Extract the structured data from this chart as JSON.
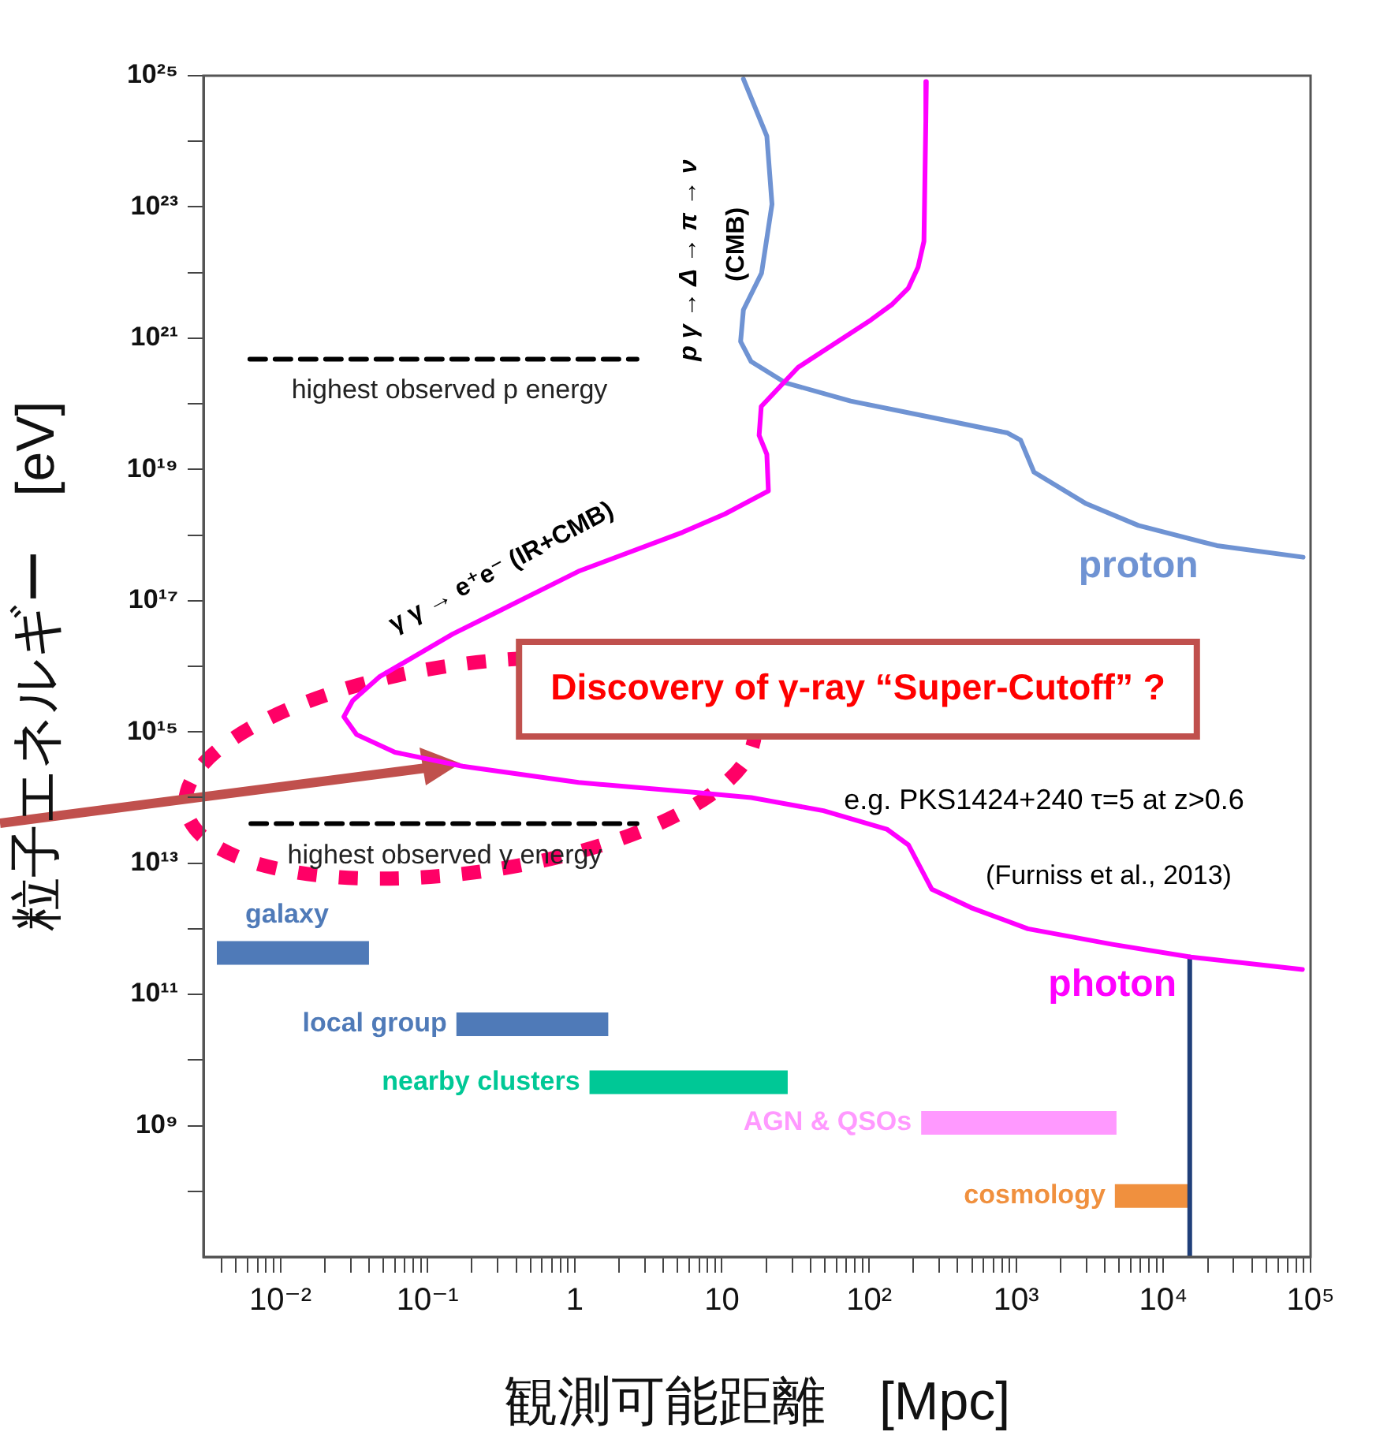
{
  "chart_data": {
    "type": "line",
    "xlabel": "観測可能距離　[Mpc]",
    "ylabel": "粒子エネルギー　[eV]",
    "log": "xy",
    "grid": false,
    "legend": false,
    "marker": "none",
    "line_style": "solid",
    "xlim": [
      0.003,
      100000
    ],
    "ylim": [
      10000000.0,
      1e+25
    ],
    "xticks": [
      {
        "value": 0.004,
        "label": null
      },
      {
        "value": 0.005,
        "label": null
      },
      {
        "value": 0.006,
        "label": null
      },
      {
        "value": 0.007,
        "label": null
      },
      {
        "value": 0.008,
        "label": null
      },
      {
        "value": 0.009,
        "label": null
      },
      {
        "value": 0.01,
        "label": "10⁻²"
      },
      {
        "value": 0.02,
        "label": null
      },
      {
        "value": 0.03,
        "label": null
      },
      {
        "value": 0.04,
        "label": null
      },
      {
        "value": 0.05,
        "label": null
      },
      {
        "value": 0.06,
        "label": null
      },
      {
        "value": 0.07,
        "label": null
      },
      {
        "value": 0.08,
        "label": null
      },
      {
        "value": 0.09,
        "label": null
      },
      {
        "value": 0.1,
        "label": "10⁻¹"
      },
      {
        "value": 0.2,
        "label": null
      },
      {
        "value": 0.3,
        "label": null
      },
      {
        "value": 0.4,
        "label": null
      },
      {
        "value": 0.5,
        "label": null
      },
      {
        "value": 0.6,
        "label": null
      },
      {
        "value": 0.7,
        "label": null
      },
      {
        "value": 0.8,
        "label": null
      },
      {
        "value": 0.9,
        "label": null
      },
      1,
      {
        "value": 2,
        "label": null
      },
      {
        "value": 3,
        "label": null
      },
      {
        "value": 4,
        "label": null
      },
      {
        "value": 5,
        "label": null
      },
      {
        "value": 6,
        "label": null
      },
      {
        "value": 7,
        "label": null
      },
      {
        "value": 8,
        "label": null
      },
      {
        "value": 9,
        "label": null
      },
      10,
      {
        "value": 20,
        "label": null
      },
      {
        "value": 30,
        "label": null
      },
      {
        "value": 40,
        "label": null
      },
      {
        "value": 50,
        "label": null
      },
      {
        "value": 60,
        "label": null
      },
      {
        "value": 70,
        "label": null
      },
      {
        "value": 80,
        "label": null
      },
      {
        "value": 90,
        "label": null
      },
      {
        "value": 100,
        "label": "10²"
      },
      {
        "value": 200,
        "label": null
      },
      {
        "value": 300,
        "label": null
      },
      {
        "value": 400,
        "label": null
      },
      {
        "value": 500,
        "label": null
      },
      {
        "value": 600,
        "label": null
      },
      {
        "value": 700,
        "label": null
      },
      {
        "value": 800,
        "label": null
      },
      {
        "value": 900,
        "label": null
      },
      {
        "value": 1000,
        "label": "10³"
      },
      {
        "value": 2000,
        "label": null
      },
      {
        "value": 3000,
        "label": null
      },
      {
        "value": 4000,
        "label": null
      },
      {
        "value": 5000,
        "label": null
      },
      {
        "value": 6000,
        "label": null
      },
      {
        "value": 7000,
        "label": null
      },
      {
        "value": 8000,
        "label": null
      },
      {
        "value": 9000,
        "label": null
      },
      {
        "value": 10000,
        "label": "10⁴"
      },
      {
        "value": 20000,
        "label": null
      },
      {
        "value": 30000,
        "label": null
      },
      {
        "value": 40000,
        "label": null
      },
      {
        "value": 50000,
        "label": null
      },
      {
        "value": 60000,
        "label": null
      },
      {
        "value": 70000,
        "label": null
      },
      {
        "value": 80000,
        "label": null
      },
      {
        "value": 90000,
        "label": null
      },
      {
        "value": 100000,
        "label": "10⁵"
      }
    ],
    "yticks": [
      {
        "value": 100000000.0,
        "label": null
      },
      {
        "value": 1000000000.0,
        "label": "10⁹"
      },
      {
        "value": 10000000000.0,
        "label": null
      },
      {
        "value": 100000000000.0,
        "label": "10¹¹"
      },
      {
        "value": 1000000000000.0,
        "label": null
      },
      {
        "value": 10000000000000.0,
        "label": "10¹³"
      },
      {
        "value": 100000000000000.0,
        "label": null
      },
      {
        "value": 1000000000000000.0,
        "label": "10¹⁵"
      },
      {
        "value": 1e+16,
        "label": null
      },
      {
        "value": 1e+17,
        "label": "10¹⁷"
      },
      {
        "value": 1e+18,
        "label": null
      },
      {
        "value": 1e+19,
        "label": "10¹⁹"
      },
      {
        "value": 1e+20,
        "label": null
      },
      {
        "value": 1e+21,
        "label": "10²¹"
      },
      {
        "value": 1e+22,
        "label": null
      },
      {
        "value": 1e+23,
        "label": "10²³"
      },
      {
        "value": 1e+24,
        "label": null
      },
      {
        "value": 1e+25,
        "label": "10²⁵"
      }
    ],
    "series": [
      {
        "name": "photon",
        "color": "#ff00ff",
        "x": [
          245,
          243,
          236,
          215,
          185,
          144,
          103,
          33,
          18.5,
          17.9,
          20.2,
          20.7,
          10.5,
          5.4,
          1.06,
          0.28,
          0.148,
          0.047,
          0.031,
          0.027,
          0.033,
          0.06,
          0.173,
          1.06,
          6.4,
          15.8,
          49,
          132,
          185,
          267,
          493,
          1200,
          4500,
          15400,
          88000
        ],
        "values": [
          8.1e+24,
          2e+24,
          3e+22,
          1.2e+22,
          5.8e+21,
          3.3e+21,
          1.9e+21,
          3.6e+20,
          9.1e+19,
          3.3e+19,
          1.7e+19,
          4.7e+18,
          2.1e+18,
          1.1e+18,
          2.8e+17,
          6.3e+16,
          3.1e+16,
          6900000000000000.0,
          3000000000000000.0,
          1700000000000000.0,
          910000000000000.0,
          490000000000000.0,
          300000000000000.0,
          170000000000000.0,
          120000000000000.0,
          100000000000000.0,
          63000000000000.0,
          33000000000000.0,
          19000000000000.0,
          4000000000000.0,
          2100000000000.0,
          1000000000000.0,
          580000000000.0,
          370000000000.0,
          240000000000.0
        ]
      },
      {
        "name": "proton",
        "color": "#6f93d3",
        "x": [
          14.0,
          20.2,
          21.9,
          18.6,
          14.0,
          13.4,
          15.8,
          26.9,
          75,
          256,
          873,
          1070,
          1320,
          2990,
          6760,
          23100,
          89000
        ],
        "values": [
          8.9e+24,
          1.2e+24,
          1.1e+23,
          9.8e+21,
          2.7e+21,
          8.9e+20,
          4.4e+20,
          2.1e+20,
          1.1e+20,
          6.3e+19,
          3.6e+19,
          2.8e+19,
          9.1e+18,
          3e+18,
          1.4e+18,
          6.9e+17,
          4.6e+17
        ]
      },
      {
        "color": "#1f3f7a",
        "x": [
          15100,
          15100
        ],
        "values": [
          10000000.0,
          370000000000.0
        ]
      },
      {
        "color": "#000000",
        "line_style": "dashed",
        "x": [
          0.0062,
          2.65
        ],
        "values": [
          4.8e+20,
          4.8e+20
        ]
      },
      {
        "color": "#000000",
        "line_style": "dashed",
        "x": [
          0.0063,
          2.65
        ],
        "values": [
          40000000000000.0,
          40000000000000.0
        ]
      },
      {
        "name": "galaxy",
        "color": "#4f7ab8",
        "x": [
          0.0037,
          0.04
        ],
        "values": [
          430000000000.0,
          430000000000.0
        ]
      },
      {
        "name": "local group",
        "color": "#4f7ab8",
        "x": [
          0.157,
          1.69
        ],
        "values": [
          35000000000.0,
          35000000000.0
        ]
      },
      {
        "name": "nearby clusters",
        "color": "#00c896",
        "x": [
          1.26,
          28
        ],
        "values": [
          4600000000.0,
          4600000000.0
        ]
      },
      {
        "name": "AGN & QSOs",
        "color": "#ff99ff",
        "x": [
          226,
          4800
        ],
        "values": [
          1100000000.0,
          1100000000.0
        ]
      },
      {
        "name": "cosmology",
        "color": "#f0903e",
        "x": [
          4680,
          14800
        ],
        "values": [
          85000000.0,
          85000000.0
        ]
      }
    ],
    "annotations": [
      "highest observed p energy",
      "highest observed γ energy",
      "p γ → Δ → π → ν",
      "(CMB)",
      "γ γ → e⁺e⁻ (IR+CMB)",
      "Discovery of γ-ray “Super-Cutoff” ?",
      "e.g. PKS1424+240 τ=5 at z>0.6",
      "(Furniss et al., 2013)"
    ]
  }
}
